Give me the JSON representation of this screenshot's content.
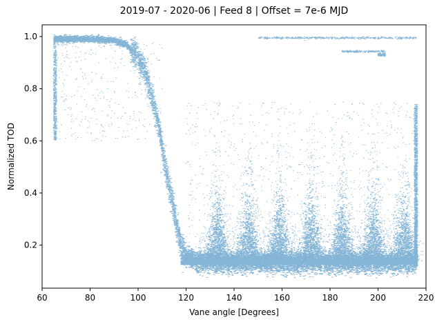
{
  "chart_data": {
    "type": "scatter",
    "title": "2019-07 - 2020-06 | Feed 8 | Offset = 7e-6 MJD",
    "xlabel": "Vane angle [Degrees]",
    "ylabel": "Normalized TOD",
    "xlim": [
      60,
      220
    ],
    "ylim": [
      0.035,
      1.045
    ],
    "xticks": [
      60,
      80,
      100,
      120,
      140,
      160,
      180,
      200,
      220
    ],
    "yticks": [
      0.2,
      0.4,
      0.6,
      0.8,
      1.0
    ],
    "xtick_labels": [
      "60",
      "80",
      "100",
      "120",
      "140",
      "160",
      "180",
      "200",
      "220"
    ],
    "ytick_labels": [
      "0.2",
      "0.4",
      "0.6",
      "0.8",
      "1.0"
    ],
    "grid": false,
    "legend": "none",
    "marker_color": "#1f77b4",
    "series": [
      {
        "description_points_approx": [
          [
            65,
            0.99
          ],
          [
            70,
            0.99
          ],
          [
            80,
            0.99
          ],
          [
            90,
            0.985
          ],
          [
            95,
            0.97
          ],
          [
            100,
            0.92
          ],
          [
            103,
            0.86
          ],
          [
            106,
            0.76
          ],
          [
            108,
            0.68
          ],
          [
            110,
            0.58
          ],
          [
            112,
            0.47
          ],
          [
            114,
            0.38
          ],
          [
            116,
            0.28
          ],
          [
            118,
            0.19
          ],
          [
            120,
            0.16
          ],
          [
            125,
            0.13
          ],
          [
            140,
            0.13
          ],
          [
            160,
            0.13
          ],
          [
            180,
            0.13
          ],
          [
            200,
            0.13
          ],
          [
            215,
            0.13
          ]
        ]
      }
    ],
    "bump_peaks_x": [
      133,
      146,
      159,
      172,
      185,
      198,
      211
    ]
  }
}
